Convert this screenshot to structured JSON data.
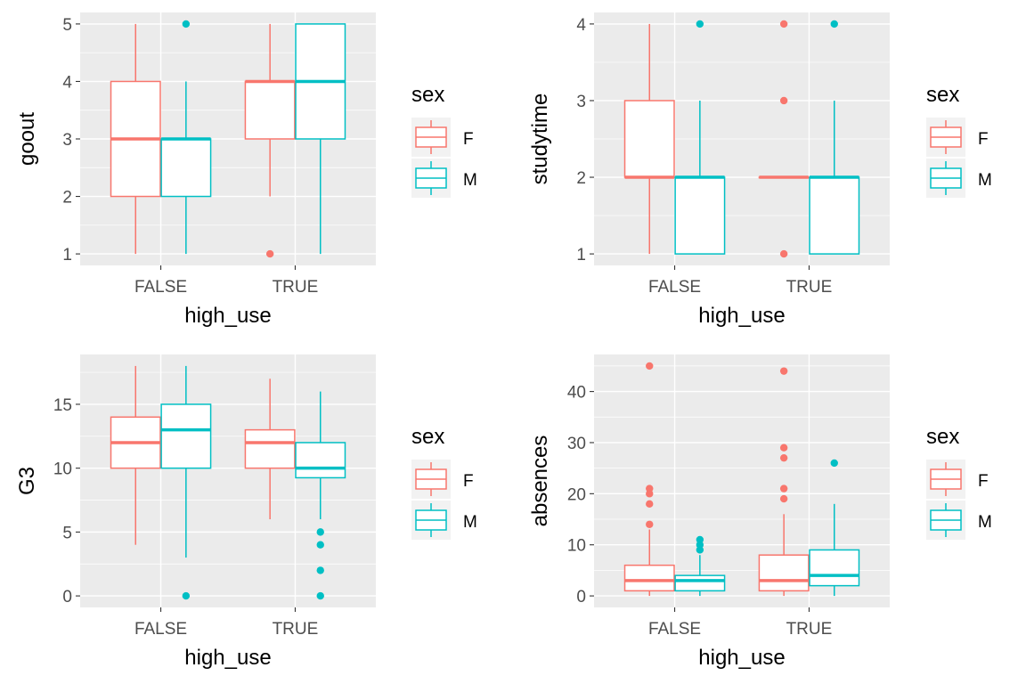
{
  "colors": {
    "F": "#F8766D",
    "M": "#00BFC4",
    "panel": "#EBEBEB",
    "grid": "#FFFFFF",
    "text": "#000000",
    "tick": "#4D4D4D"
  },
  "chart_data": [
    {
      "type": "boxplot",
      "xlabel": "high_use",
      "ylabel": "goout",
      "categories": [
        "FALSE",
        "TRUE"
      ],
      "ylim": [
        0.8,
        5.2
      ],
      "yticks": [
        1,
        2,
        3,
        4,
        5
      ],
      "legend": {
        "title": "sex",
        "entries": [
          "F",
          "M"
        ],
        "position": "right"
      },
      "series": [
        {
          "name": "F",
          "boxes": [
            {
              "x": "FALSE",
              "min": 1,
              "q1": 2,
              "median": 3,
              "q3": 4,
              "max": 5,
              "outliers": []
            },
            {
              "x": "TRUE",
              "min": 2,
              "q1": 3,
              "median": 4,
              "q3": 4,
              "max": 5,
              "outliers": [
                1
              ]
            }
          ]
        },
        {
          "name": "M",
          "boxes": [
            {
              "x": "FALSE",
              "min": 1,
              "q1": 2,
              "median": 3,
              "q3": 3,
              "max": 4,
              "outliers": [
                5
              ]
            },
            {
              "x": "TRUE",
              "min": 1,
              "q1": 3,
              "median": 4,
              "q3": 5,
              "max": 5,
              "outliers": []
            }
          ]
        }
      ]
    },
    {
      "type": "boxplot",
      "xlabel": "high_use",
      "ylabel": "studytime",
      "categories": [
        "FALSE",
        "TRUE"
      ],
      "ylim": [
        0.85,
        4.15
      ],
      "yticks": [
        1,
        2,
        3,
        4
      ],
      "legend": {
        "title": "sex",
        "entries": [
          "F",
          "M"
        ],
        "position": "right"
      },
      "series": [
        {
          "name": "F",
          "boxes": [
            {
              "x": "FALSE",
              "min": 1,
              "q1": 2,
              "median": 2,
              "q3": 3,
              "max": 4,
              "outliers": []
            },
            {
              "x": "TRUE",
              "min": 2,
              "q1": 2,
              "median": 2,
              "q3": 2,
              "max": 2,
              "outliers": [
                1,
                3,
                4
              ]
            }
          ]
        },
        {
          "name": "M",
          "boxes": [
            {
              "x": "FALSE",
              "min": 1,
              "q1": 1,
              "median": 2,
              "q3": 2,
              "max": 3,
              "outliers": [
                4
              ]
            },
            {
              "x": "TRUE",
              "min": 1,
              "q1": 1,
              "median": 2,
              "q3": 2,
              "max": 3,
              "outliers": [
                4
              ]
            }
          ]
        }
      ]
    },
    {
      "type": "boxplot",
      "xlabel": "high_use",
      "ylabel": "G3",
      "categories": [
        "FALSE",
        "TRUE"
      ],
      "ylim": [
        -0.9,
        18.9
      ],
      "yticks": [
        0,
        5,
        10,
        15
      ],
      "legend": {
        "title": "sex",
        "entries": [
          "F",
          "M"
        ],
        "position": "right"
      },
      "series": [
        {
          "name": "F",
          "boxes": [
            {
              "x": "FALSE",
              "min": 4,
              "q1": 10,
              "median": 12,
              "q3": 14,
              "max": 18,
              "outliers": []
            },
            {
              "x": "TRUE",
              "min": 6,
              "q1": 10,
              "median": 12,
              "q3": 13,
              "max": 17,
              "outliers": []
            }
          ]
        },
        {
          "name": "M",
          "boxes": [
            {
              "x": "FALSE",
              "min": 3,
              "q1": 10,
              "median": 13,
              "q3": 15,
              "max": 18,
              "outliers": [
                0
              ]
            },
            {
              "x": "TRUE",
              "min": 6,
              "q1": 9.25,
              "median": 10,
              "q3": 12,
              "max": 16,
              "outliers": [
                0,
                2,
                4,
                5
              ]
            }
          ]
        }
      ]
    },
    {
      "type": "boxplot",
      "xlabel": "high_use",
      "ylabel": "absences",
      "categories": [
        "FALSE",
        "TRUE"
      ],
      "ylim": [
        -2.25,
        47.25
      ],
      "yticks": [
        0,
        10,
        20,
        30,
        40
      ],
      "legend": {
        "title": "sex",
        "entries": [
          "F",
          "M"
        ],
        "position": "right"
      },
      "series": [
        {
          "name": "F",
          "boxes": [
            {
              "x": "FALSE",
              "min": 0,
              "q1": 1,
              "median": 3,
              "q3": 6,
              "max": 13,
              "outliers": [
                14,
                18,
                20,
                21,
                45
              ]
            },
            {
              "x": "TRUE",
              "min": 0,
              "q1": 1,
              "median": 3,
              "q3": 8,
              "max": 16,
              "outliers": [
                19,
                21,
                27,
                29,
                44
              ]
            }
          ]
        },
        {
          "name": "M",
          "boxes": [
            {
              "x": "FALSE",
              "min": 0,
              "q1": 1,
              "median": 3,
              "q3": 4,
              "max": 8,
              "outliers": [
                9,
                10,
                11
              ]
            },
            {
              "x": "TRUE",
              "min": 0,
              "q1": 2,
              "median": 4,
              "q3": 9,
              "max": 18,
              "outliers": [
                26
              ]
            }
          ]
        }
      ]
    }
  ]
}
